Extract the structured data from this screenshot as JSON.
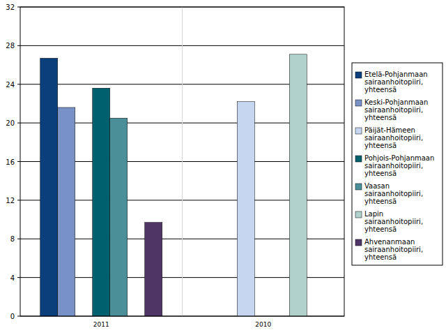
{
  "chart_data": {
    "type": "bar",
    "categories": [
      "2011",
      "2010"
    ],
    "series": [
      {
        "name": "Etelä-Pohjanmaan sairaanhoitopiiri, yhteensä",
        "color": "#0b3f7c",
        "values": [
          26.7,
          null
        ]
      },
      {
        "name": "Keski-Pohjanmaan sairaanhoitopiiri, yhteensä",
        "color": "#7891c6",
        "values": [
          21.6,
          null
        ]
      },
      {
        "name": "Päijät-Hämeen sairaanhoitopiiri, yhteensä",
        "color": "#c6d6f0",
        "values": [
          null,
          22.2
        ]
      },
      {
        "name": "Pohjois-Pohjanmaan sairaanhoitopiiri, yhteensä",
        "color": "#00606e",
        "values": [
          23.6,
          null
        ]
      },
      {
        "name": "Vaasan sairaanhoitopiiri, yhteensä",
        "color": "#4b8f98",
        "values": [
          20.5,
          null
        ]
      },
      {
        "name": "Lapin sairaanhoitopiiri, yhteensä",
        "color": "#b1d1cd",
        "values": [
          null,
          27.1
        ]
      },
      {
        "name": "Ahvenanmaan sairaanhoitopiiri, yhteensä",
        "color": "#4f3566",
        "values": [
          9.7,
          null
        ]
      }
    ],
    "ylim": [
      0,
      32
    ],
    "yticks": [
      0,
      4,
      8,
      12,
      16,
      20,
      24,
      28,
      32
    ],
    "grid": true,
    "legend": "right"
  }
}
